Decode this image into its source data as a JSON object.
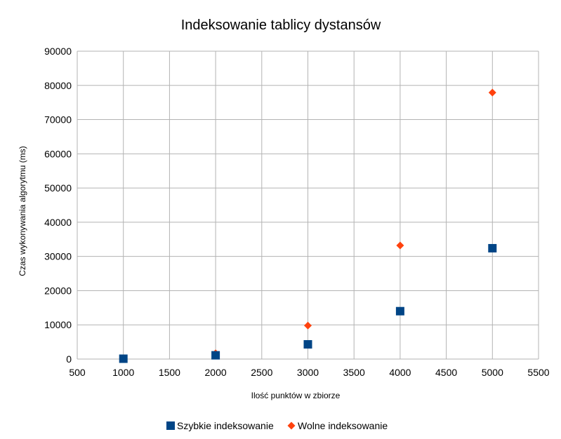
{
  "chart_data": {
    "type": "scatter",
    "title": "Indeksowanie tablicy dystansów",
    "xlabel": "Ilość punktów w zbiorze",
    "ylabel": "Czas wykonywania algorytmu (ms)",
    "xlim": [
      500,
      5500
    ],
    "ylim": [
      0,
      90000
    ],
    "xticks": [
      500,
      1000,
      1500,
      2000,
      2500,
      3000,
      3500,
      4000,
      4500,
      5000,
      5500
    ],
    "yticks": [
      0,
      10000,
      20000,
      30000,
      40000,
      50000,
      60000,
      70000,
      80000,
      90000
    ],
    "grid": true,
    "legend_position": "bottom",
    "series": [
      {
        "name": "Szybkie indeksowanie",
        "marker": "square",
        "color": "#004586",
        "x": [
          1000,
          2000,
          3000,
          4000,
          5000
        ],
        "y": [
          100,
          1100,
          4300,
          14000,
          32400
        ]
      },
      {
        "name": "Wolne indeksowanie",
        "marker": "diamond",
        "color": "#ff420e",
        "x": [
          1000,
          2000,
          3000,
          4000,
          5000
        ],
        "y": [
          150,
          1700,
          9800,
          33200,
          77900
        ]
      }
    ]
  }
}
